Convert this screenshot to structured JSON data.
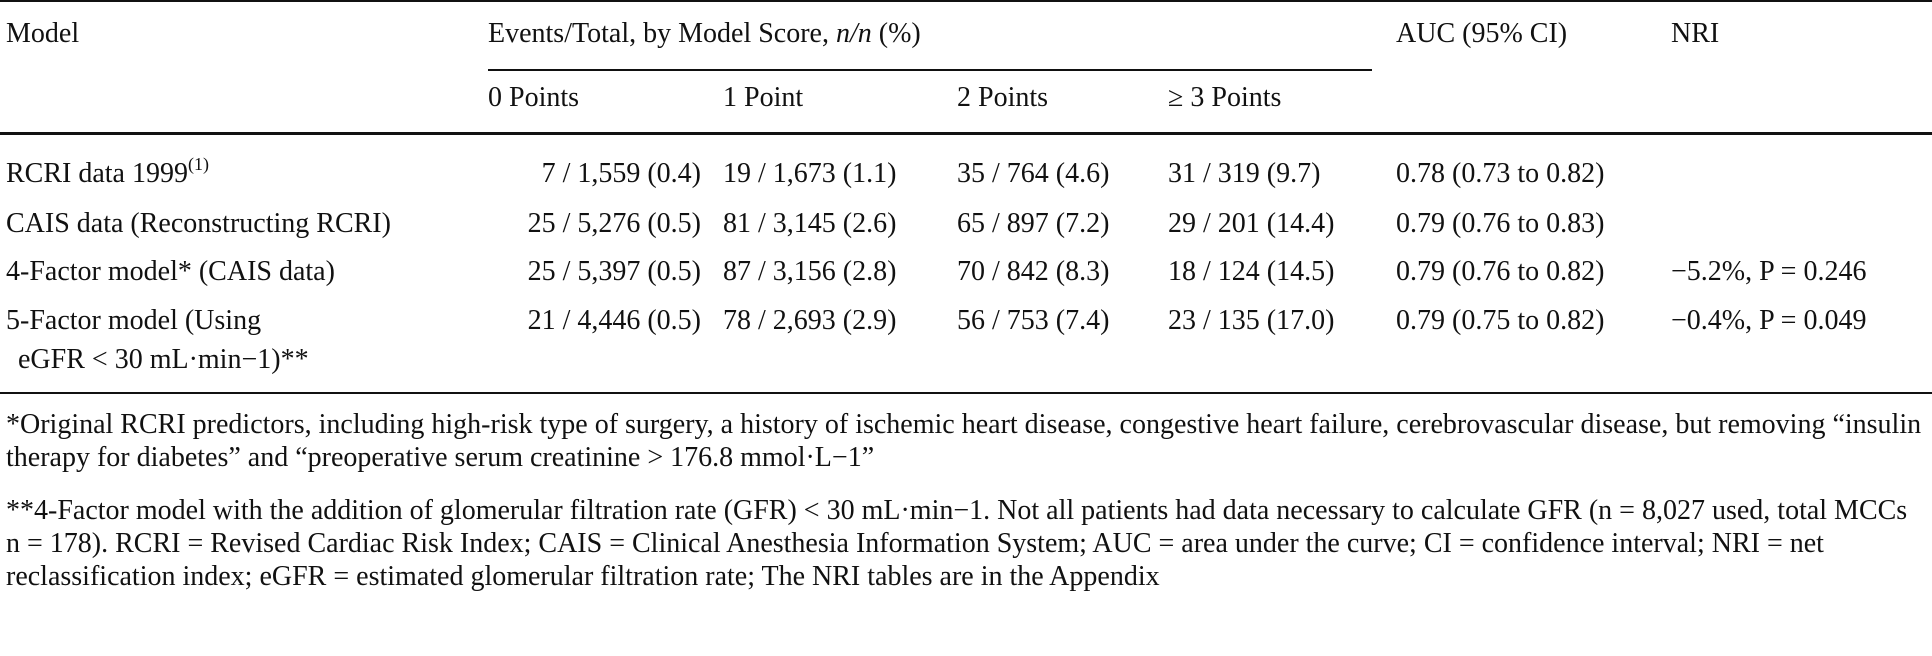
{
  "header": {
    "model": "Model",
    "events_group": "Events/Total, by Model Score, n/n (%)",
    "auc": "AUC (95% CI)",
    "nri": "NRI",
    "score_cols": [
      "0 Points",
      "1 Point",
      "2 Points",
      "≥ 3 Points"
    ]
  },
  "rows": [
    {
      "model": "RCRI data 1999",
      "model_sup": "(1)",
      "cells": [
        "7 / 1,559 (0.4)",
        "19 / 1,673 (1.1)",
        "35 / 764 (4.6)",
        "31 / 319 (9.7)"
      ],
      "auc": "0.78 (0.73 to 0.82)",
      "nri": ""
    },
    {
      "model": "CAIS data (Reconstructing RCRI)",
      "cells": [
        "25 / 5,276 (0.5)",
        "81 / 3,145 (2.6)",
        "65 / 897 (7.2)",
        "29 / 201 (14.4)"
      ],
      "auc": "0.79 (0.76 to 0.83)",
      "nri": ""
    },
    {
      "model": "4-Factor model* (CAIS data)",
      "cells": [
        "25 / 5,397 (0.5)",
        "87 / 3,156 (2.8)",
        "70 / 842 (8.3)",
        "18 / 124 (14.5)"
      ],
      "auc": "0.79 (0.76 to 0.82)",
      "nri": "−5.2%, P = 0.246"
    },
    {
      "model": "5-Factor model (Using",
      "model_line2": "eGFR < 30 mL·min−1)**",
      "cells": [
        "21 / 4,446 (0.5)",
        "78 / 2,693 (2.9)",
        "56 / 753 (7.4)",
        "23 / 135 (17.0)"
      ],
      "auc": "0.79 (0.75 to 0.82)",
      "nri": "−0.4%, P = 0.049"
    }
  ],
  "footnotes": [
    "*Original RCRI predictors, including high-risk type of surgery, a history of ischemic heart disease, congestive heart failure, cerebrovascular disease, but removing “insulin therapy for diabetes” and “preoperative serum creatinine > 176.8 mmol·L−1”",
    "**4-Factor model with the addition of glomerular filtration rate (GFR) < 30 mL·min−1. Not all patients had data necessary to calculate GFR (n = 8,027 used, total MCCs n = 178). RCRI = Revised Cardiac Risk Index; CAIS = Clinical Anesthesia Information System; AUC = area under the curve; CI = confidence interval; NRI = net reclassification index; eGFR = estimated glomerular filtration rate; The NRI tables are in the Appendix"
  ]
}
